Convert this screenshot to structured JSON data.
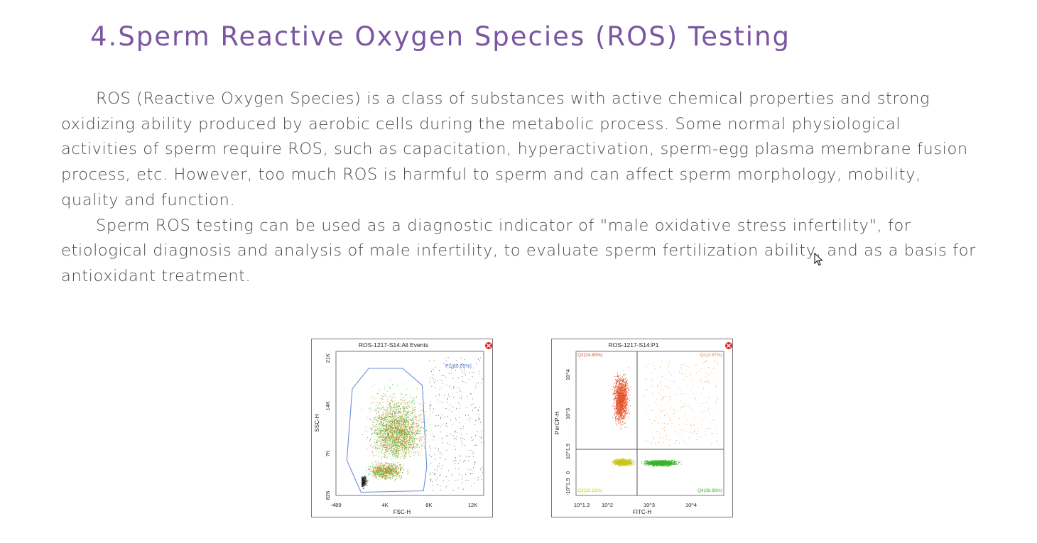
{
  "section": {
    "title": "4.Sperm Reactive Oxygen Species (ROS) Testing",
    "paragraphs": [
      "ROS (Reactive Oxygen Species) is a class of substances with active chemical properties and strong oxidizing ability produced by aerobic cells during the metabolic process. Some normal physiological activities of sperm require ROS, such as capacitation, hyperactivation, sperm-egg plasma membrane fusion process, etc. However, too much ROS is harmful to sperm and can affect sperm morphology, mobility, quality and function.",
      "Sperm ROS testing can be used as a diagnostic indicator of \"male oxidative stress infertility\", for etiological diagnosis and analysis of male infertility, to evaluate sperm fertilization ability, and as a basis for antioxidant treatment."
    ]
  },
  "chart_data": [
    {
      "type": "scatter",
      "title": "ROS-1217-S14:All Events",
      "xlabel": "FSC-H",
      "ylabel": "SSC-H",
      "x_ticks": [
        "-489",
        "4K",
        "8K",
        "12K"
      ],
      "y_ticks": [
        "826",
        "7K",
        "14K",
        "21K"
      ],
      "xlim": [
        -489,
        13000
      ],
      "ylim": [
        826,
        22000
      ],
      "gate": {
        "name": "P1(89.05%)",
        "vertices": [
          [
            1000,
            16500
          ],
          [
            2500,
            19500
          ],
          [
            5600,
            19500
          ],
          [
            7400,
            17000
          ],
          [
            7800,
            5000
          ],
          [
            7500,
            1500
          ],
          [
            1800,
            1300
          ],
          [
            500,
            6000
          ],
          [
            1000,
            16500
          ]
        ]
      },
      "series": [],
      "colors": {
        "gate": "#6b8fd6",
        "green": "#3fb42d",
        "orange": "#e8892e",
        "black": "#222222"
      }
    },
    {
      "type": "scatter",
      "title": "ROS-1217-S14:P1",
      "xlabel": "FITC-H",
      "ylabel": "PerCP-H",
      "x_ticks": [
        "10^1.3",
        "10^2",
        "10^3",
        "10^4"
      ],
      "y_ticks": [
        "-10^1.9",
        "0",
        "10^1.9",
        "10^3",
        "10^4"
      ],
      "quadrants": [
        {
          "label": "Q1(3.97%)",
          "color": "#e8892e",
          "position": "top-right"
        },
        {
          "label": "Q2(24.89%)",
          "color": "#e0522a",
          "position": "top-left"
        },
        {
          "label": "Q3(32.15%)",
          "color": "#c8c61c",
          "position": "bottom-left"
        },
        {
          "label": "Q4(38.98%)",
          "color": "#39b52a",
          "position": "bottom-right"
        }
      ],
      "series": []
    }
  ]
}
